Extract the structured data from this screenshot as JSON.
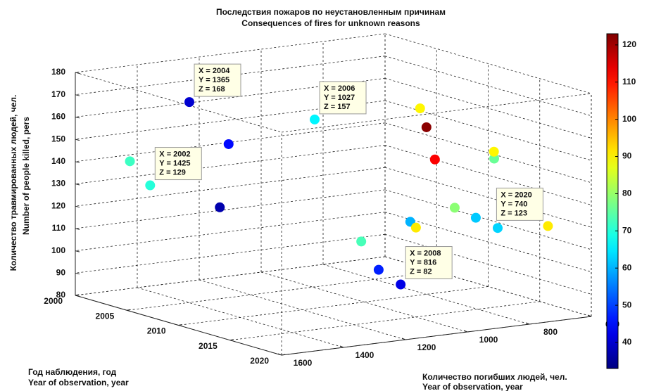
{
  "chart_data": {
    "type": "scatter",
    "title": "Последствия пожаров по неустановленным причинам",
    "subtitle": "Consequences of fires for unknown reasons",
    "xlabel": [
      "Год наблюдения, год",
      "Year of observation, year"
    ],
    "ylabel": [
      "Количество погибших людей, чел.",
      "Year of observation, year"
    ],
    "zlabel": [
      "Количество травмированных людей, чел.",
      "Number of people killed, pers"
    ],
    "x": [
      2001,
      2002,
      2003,
      2004,
      2005,
      2006,
      2007,
      2008,
      2009,
      2010,
      2011,
      2012,
      2013,
      2014,
      2015,
      2016,
      2017,
      2018,
      2019,
      2020
    ],
    "y": [
      1457,
      1425,
      1205,
      1365,
      1300,
      1027,
      720,
      816,
      766,
      772,
      614,
      648,
      808,
      1143,
      1018,
      1033,
      873,
      1220,
      869,
      740
    ],
    "z": [
      139,
      129,
      145,
      168,
      121,
      157,
      158,
      82,
      153,
      140,
      139,
      144,
      123,
      115,
      123,
      122,
      125,
      109,
      123,
      123
    ],
    "c": [
      72,
      70,
      45,
      40,
      37,
      66,
      90,
      42,
      122,
      112,
      76,
      90,
      79,
      73,
      60,
      91,
      62,
      47,
      63,
      91
    ],
    "datatips": [
      null,
      [
        "X = 2002",
        "Y = 1425",
        "Z = 129"
      ],
      null,
      [
        "X = 2004",
        "Y = 1365",
        "Z = 168"
      ],
      null,
      [
        "X = 2006",
        "Y = 1027",
        "Z = 157"
      ],
      null,
      [
        "X = 2008",
        "Y = 816",
        "Z = 82"
      ],
      null,
      null,
      null,
      null,
      null,
      null,
      null,
      null,
      null,
      null,
      null,
      [
        "X = 2020",
        "Y = 740",
        "Z = 123"
      ]
    ],
    "xlim": [
      2000,
      2020
    ],
    "xticks": [
      2000,
      2005,
      2010,
      2015,
      2020
    ],
    "ylim": [
      600,
      1600
    ],
    "yticks": [
      600,
      800,
      1000,
      1200,
      1400,
      1600
    ],
    "zlim": [
      80,
      180
    ],
    "zticks": [
      80,
      90,
      100,
      110,
      120,
      130,
      140,
      150,
      160,
      170,
      180
    ],
    "colormap": "jet",
    "clim": [
      33,
      123
    ],
    "cticks": [
      40,
      50,
      60,
      70,
      80,
      90,
      100,
      110,
      120
    ],
    "grid": true
  }
}
